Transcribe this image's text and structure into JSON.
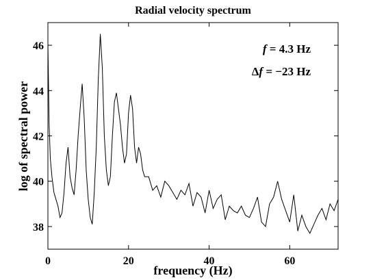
{
  "chart_data": {
    "type": "line",
    "title": "Radial velocity spectrum",
    "xlabel": "frequency (Hz)",
    "ylabel": "log of spectral power",
    "xlim": [
      0,
      72
    ],
    "ylim": [
      37,
      47
    ],
    "xticks": [
      0,
      20,
      40,
      60
    ],
    "yticks": [
      38,
      40,
      42,
      44,
      46
    ],
    "grid": false,
    "annotations": [
      {
        "prefix": "",
        "var": "f",
        "value": " = 4.3 Hz"
      },
      {
        "prefix": "Δ",
        "var": "f",
        "value": " = −23 Hz"
      }
    ],
    "series": [
      {
        "color": "#000000",
        "x": [
          0,
          0.3,
          0.6,
          1,
          1.5,
          2,
          2.5,
          3,
          3.5,
          4,
          4.5,
          5,
          5.5,
          6,
          6.5,
          7,
          7.5,
          8,
          8.5,
          9,
          9.5,
          10,
          10.5,
          11,
          11.5,
          12,
          12.5,
          13,
          13.5,
          14,
          14.5,
          15,
          15.5,
          16,
          16.5,
          17,
          17.5,
          18,
          18.5,
          19,
          19.5,
          20,
          20.5,
          21,
          21.5,
          22,
          22.5,
          23,
          23.5,
          24,
          25,
          26,
          27,
          28,
          29,
          30,
          31,
          32,
          33,
          34,
          35,
          36,
          37,
          38,
          39,
          40,
          41,
          42,
          43,
          44,
          45,
          46,
          47,
          48,
          49,
          50,
          51,
          52,
          53,
          54,
          55,
          56,
          57,
          58,
          59,
          60,
          61,
          62,
          63,
          64,
          65,
          66,
          67,
          68,
          69,
          70,
          71,
          72
        ],
        "y": [
          46.1,
          42.5,
          41,
          40.2,
          39.5,
          39.2,
          38.9,
          38.4,
          38.6,
          39.5,
          40.8,
          41.5,
          40.2,
          39.7,
          39.4,
          40.5,
          42.0,
          43.2,
          44.3,
          42.8,
          40.5,
          39.2,
          38.4,
          38.1,
          39.5,
          41.5,
          44.5,
          46.5,
          45.0,
          42.0,
          40.5,
          39.8,
          40.2,
          42.0,
          43.5,
          43.9,
          43.2,
          42.5,
          41.5,
          40.8,
          41.2,
          43.0,
          43.8,
          43.2,
          41.5,
          40.8,
          41.5,
          41.2,
          40.5,
          40.2,
          40.2,
          39.6,
          39.8,
          39.3,
          40.0,
          39.8,
          39.5,
          39.2,
          39.6,
          39.4,
          39.9,
          38.9,
          39.5,
          39.3,
          38.6,
          39.6,
          38.8,
          39.2,
          39.4,
          38.3,
          38.9,
          38.7,
          38.6,
          38.9,
          38.5,
          38.4,
          38.8,
          39.3,
          38.2,
          38.0,
          39.0,
          39.3,
          40.0,
          39.2,
          38.7,
          38.2,
          39.4,
          37.8,
          38.5,
          38.0,
          37.7,
          38.1,
          38.5,
          38.8,
          38.3,
          39.0,
          38.7,
          39.2
        ]
      }
    ]
  }
}
